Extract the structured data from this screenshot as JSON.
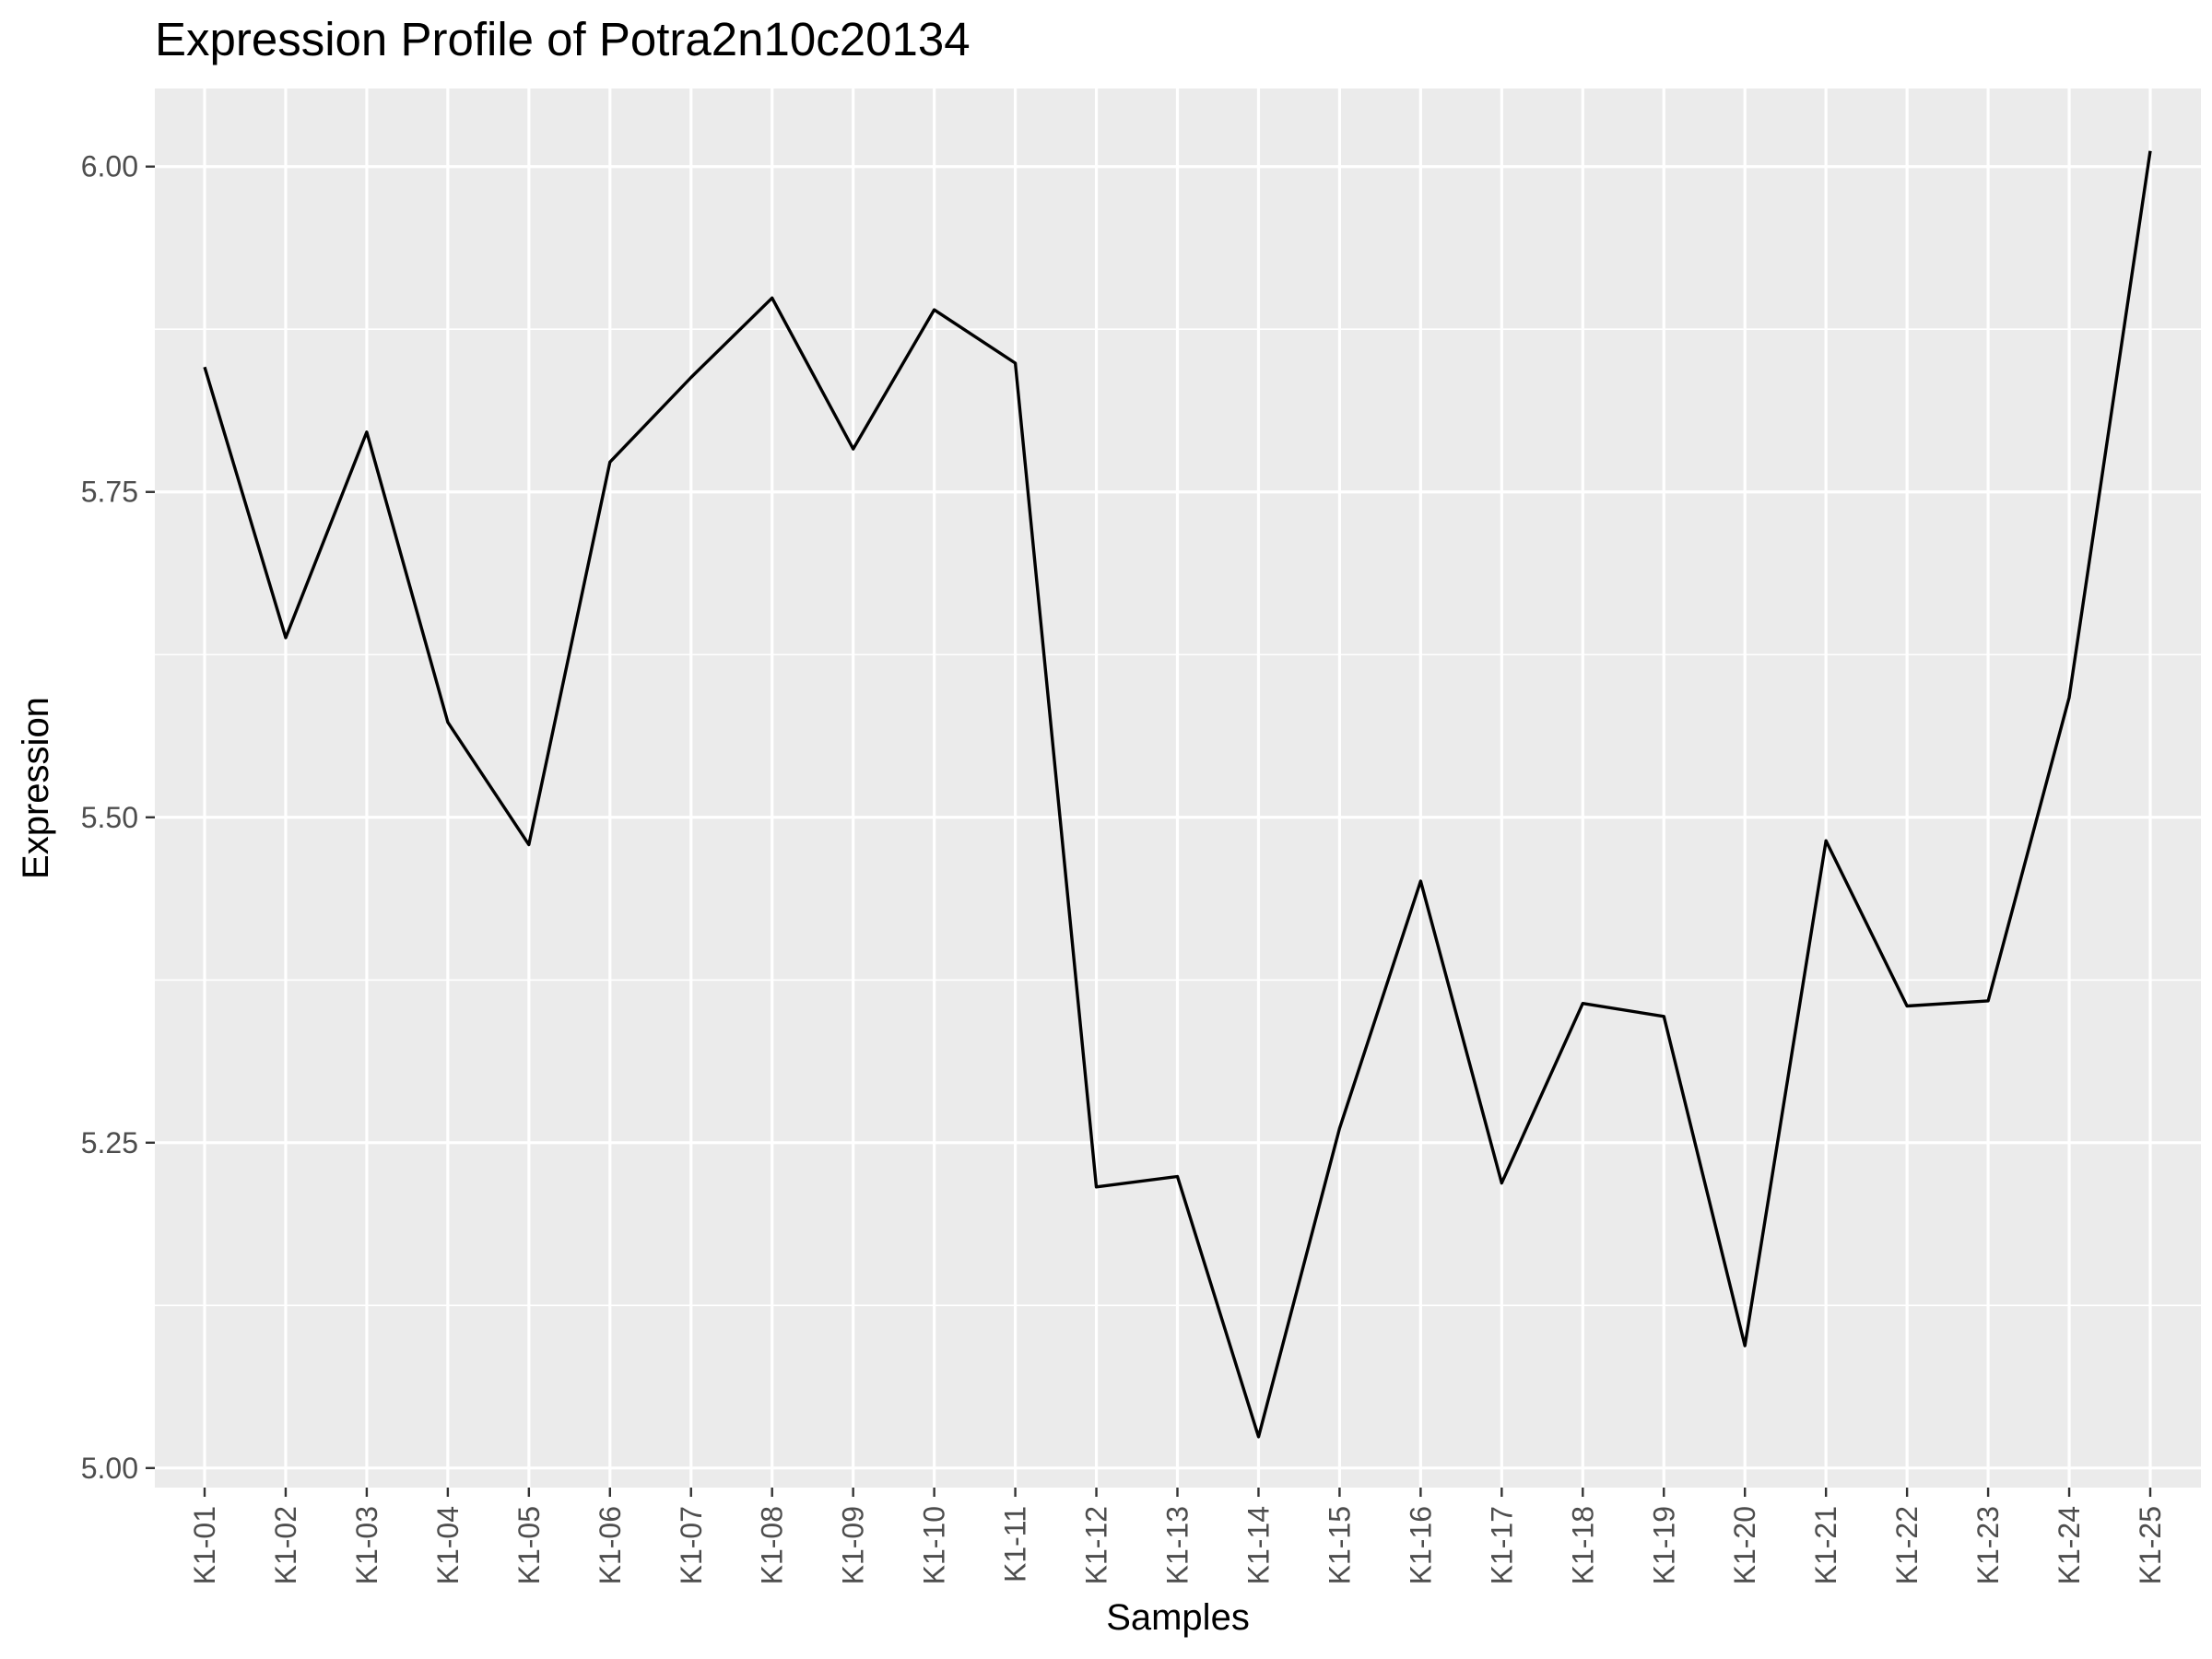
{
  "chart_data": {
    "type": "line",
    "title": "Expression Profile of Potra2n10c20134",
    "xlabel": "Samples",
    "ylabel": "Expression",
    "categories": [
      "K1-01",
      "K1-02",
      "K1-03",
      "K1-04",
      "K1-05",
      "K1-06",
      "K1-07",
      "K1-08",
      "K1-09",
      "K1-10",
      "K1-11",
      "K1-12",
      "K1-13",
      "K1-14",
      "K1-15",
      "K1-16",
      "K1-17",
      "K1-18",
      "K1-19",
      "K1-20",
      "K1-21",
      "K1-22",
      "K1-23",
      "K1-24",
      "K1-25"
    ],
    "values": [
      5.846,
      5.638,
      5.796,
      5.573,
      5.479,
      5.773,
      5.838,
      5.899,
      5.783,
      5.89,
      5.849,
      5.216,
      5.224,
      5.024,
      5.261,
      5.451,
      5.219,
      5.357,
      5.347,
      5.094,
      5.482,
      5.355,
      5.359,
      5.592,
      6.012
    ],
    "ylim": [
      4.985,
      6.06
    ],
    "yticks": [
      5.0,
      5.25,
      5.5,
      5.75,
      6.0
    ],
    "ytick_labels": [
      "5.00",
      "5.25",
      "5.50",
      "5.75",
      "6.00"
    ],
    "grid": true,
    "legend": "none",
    "colors": {
      "panel_background": "#ebebeb",
      "grid": "#ffffff",
      "line": "#000000",
      "tick_label": "#4d4d4d"
    }
  }
}
